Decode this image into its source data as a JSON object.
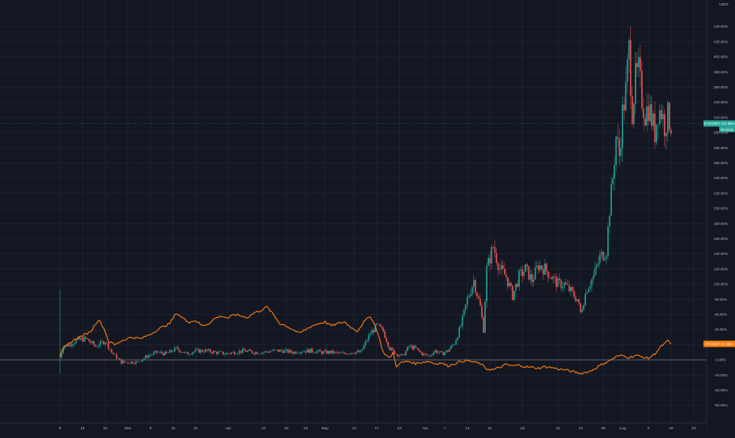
{
  "colors": {
    "background": "#131722",
    "grid": "#1e2230",
    "axis_text": "#b2b5be",
    "zero_line": "#787b86",
    "candle_up": "#26a69a",
    "candle_down": "#ef5350",
    "line_series": "#ff7f0e",
    "price_line": "#26a69a"
  },
  "ui": {
    "currency": "USDT"
  },
  "chart_data": {
    "type": "line",
    "y_unit": "%",
    "ylim": [
      -67,
      468
    ],
    "yticks": [
      -60,
      -40,
      -20,
      0,
      20,
      40,
      60,
      80,
      100,
      120,
      140,
      160,
      180,
      200,
      220,
      240,
      260,
      280,
      300,
      320,
      340,
      360,
      380,
      400,
      420,
      440
    ],
    "ytick_labels": [
      "-60.00%",
      "-40.00%",
      "-20.00%",
      "0.00%",
      "20.00%",
      "40.00%",
      "60.00%",
      "80.00%",
      "100.00%",
      "120.00%",
      "140.00%",
      "160.00%",
      "180.00%",
      "200.00%",
      "220.00%",
      "240.00%",
      "260.00%",
      "280.00%",
      "300.00%",
      "320.00%",
      "340.00%",
      "360.00%",
      "380.00%",
      "400.00%",
      "420.00%",
      "440.00%"
    ],
    "xticks": [
      {
        "label": "8",
        "day": 0
      },
      {
        "label": "15",
        "day": 7
      },
      {
        "label": "22",
        "day": 14
      },
      {
        "label": "Mar",
        "day": 21
      },
      {
        "label": "8",
        "day": 28
      },
      {
        "label": "15",
        "day": 35
      },
      {
        "label": "22",
        "day": 42
      },
      {
        "label": "Apr",
        "day": 52
      },
      {
        "label": "12",
        "day": 63
      },
      {
        "label": "19",
        "day": 70
      },
      {
        "label": "25",
        "day": 76
      },
      {
        "label": "May",
        "day": 82
      },
      {
        "label": "10",
        "day": 91
      },
      {
        "label": "17",
        "day": 98
      },
      {
        "label": "24",
        "day": 105
      },
      {
        "label": "Jun",
        "day": 113
      },
      {
        "label": "7",
        "day": 119
      },
      {
        "label": "14",
        "day": 126
      },
      {
        "label": "21",
        "day": 133
      },
      {
        "label": "Jul",
        "day": 143
      },
      {
        "label": "12",
        "day": 154
      },
      {
        "label": "19",
        "day": 161
      },
      {
        "label": "26",
        "day": 168
      },
      {
        "label": "Aug",
        "day": 174
      },
      {
        "label": "9",
        "day": 182
      },
      {
        "label": "16",
        "day": 189
      },
      {
        "label": "23",
        "day": 196
      }
    ],
    "series": [
      {
        "type": "candlestick",
        "label": "SYSUSDT",
        "last_value_label": "311.99%",
        "countdown_label": "03:15:01",
        "last_value": 311.99,
        "keypoints": [
          [
            0,
            3
          ],
          [
            1,
            18
          ],
          [
            3,
            20
          ],
          [
            5,
            26
          ],
          [
            8,
            28
          ],
          [
            11,
            18
          ],
          [
            14,
            25
          ],
          [
            16,
            10
          ],
          [
            19,
            -3
          ],
          [
            22,
            -3
          ],
          [
            24,
            -3
          ],
          [
            27,
            5
          ],
          [
            30,
            10
          ],
          [
            33,
            8
          ],
          [
            36,
            15
          ],
          [
            39,
            8
          ],
          [
            42,
            12
          ],
          [
            45,
            12
          ],
          [
            48,
            10
          ],
          [
            51,
            8
          ],
          [
            54,
            10
          ],
          [
            57,
            12
          ],
          [
            60,
            10
          ],
          [
            63,
            10
          ],
          [
            66,
            12
          ],
          [
            69,
            12
          ],
          [
            72,
            10
          ],
          [
            75,
            12
          ],
          [
            78,
            12
          ],
          [
            81,
            10
          ],
          [
            84,
            10
          ],
          [
            87,
            8
          ],
          [
            90,
            10
          ],
          [
            93,
            10
          ],
          [
            96,
            35
          ],
          [
            98,
            45
          ],
          [
            100,
            38
          ],
          [
            102,
            15
          ],
          [
            104,
            8
          ],
          [
            106,
            5
          ],
          [
            108,
            18
          ],
          [
            110,
            15
          ],
          [
            112,
            8
          ],
          [
            114,
            5
          ],
          [
            116,
            12
          ],
          [
            118,
            8
          ],
          [
            120,
            12
          ],
          [
            122,
            22
          ],
          [
            124,
            45
          ],
          [
            126,
            80
          ],
          [
            128,
            105
          ],
          [
            130,
            70
          ],
          [
            131,
            40
          ],
          [
            132,
            120
          ],
          [
            134,
            150
          ],
          [
            136,
            120
          ],
          [
            138,
            110
          ],
          [
            140,
            85
          ],
          [
            142,
            110
          ],
          [
            144,
            120
          ],
          [
            146,
            105
          ],
          [
            148,
            125
          ],
          [
            150,
            120
          ],
          [
            152,
            110
          ],
          [
            154,
            100
          ],
          [
            156,
            100
          ],
          [
            158,
            90
          ],
          [
            160,
            80
          ],
          [
            161,
            62
          ],
          [
            163,
            95
          ],
          [
            165,
            110
          ],
          [
            167,
            135
          ],
          [
            169,
            145
          ],
          [
            170,
            200
          ],
          [
            171,
            240
          ],
          [
            172,
            295
          ],
          [
            173,
            270
          ],
          [
            174,
            325
          ],
          [
            175,
            355
          ],
          [
            176,
            410
          ],
          [
            177,
            330
          ],
          [
            178,
            370
          ],
          [
            179,
            380
          ],
          [
            180,
            345
          ],
          [
            181,
            325
          ],
          [
            182,
            335
          ],
          [
            183,
            318
          ],
          [
            184,
            300
          ],
          [
            185,
            330
          ],
          [
            186,
            328
          ],
          [
            187,
            310
          ],
          [
            188,
            321
          ],
          [
            189,
            312
          ]
        ]
      },
      {
        "type": "line",
        "label": "RTUSDT",
        "last_value_label": "21.16%",
        "last_value": 21.16,
        "keypoints": [
          [
            0,
            5
          ],
          [
            1,
            15
          ],
          [
            3,
            22
          ],
          [
            5,
            28
          ],
          [
            7,
            32
          ],
          [
            9,
            36
          ],
          [
            10,
            40
          ],
          [
            11,
            48
          ],
          [
            12,
            53
          ],
          [
            13,
            46
          ],
          [
            14,
            38
          ],
          [
            15,
            25
          ],
          [
            17,
            20
          ],
          [
            19,
            25
          ],
          [
            22,
            30
          ],
          [
            25,
            28
          ],
          [
            28,
            34
          ],
          [
            31,
            42
          ],
          [
            34,
            48
          ],
          [
            36,
            62
          ],
          [
            38,
            55
          ],
          [
            40,
            50
          ],
          [
            42,
            52
          ],
          [
            44,
            45
          ],
          [
            46,
            48
          ],
          [
            48,
            55
          ],
          [
            50,
            58
          ],
          [
            52,
            55
          ],
          [
            54,
            60
          ],
          [
            56,
            58
          ],
          [
            58,
            56
          ],
          [
            60,
            62
          ],
          [
            62,
            65
          ],
          [
            64,
            70
          ],
          [
            66,
            60
          ],
          [
            68,
            48
          ],
          [
            70,
            45
          ],
          [
            72,
            40
          ],
          [
            74,
            35
          ],
          [
            76,
            40
          ],
          [
            78,
            45
          ],
          [
            80,
            48
          ],
          [
            82,
            50
          ],
          [
            84,
            45
          ],
          [
            86,
            48
          ],
          [
            88,
            50
          ],
          [
            90,
            43
          ],
          [
            92,
            38
          ],
          [
            94,
            50
          ],
          [
            96,
            58
          ],
          [
            98,
            40
          ],
          [
            100,
            10
          ],
          [
            102,
            2
          ],
          [
            103,
            10
          ],
          [
            104,
            -8
          ],
          [
            106,
            -3
          ],
          [
            108,
            -2
          ],
          [
            110,
            -5
          ],
          [
            112,
            -3
          ],
          [
            114,
            -2
          ],
          [
            116,
            -5
          ],
          [
            118,
            -4
          ],
          [
            120,
            -8
          ],
          [
            122,
            -5
          ],
          [
            124,
            -2
          ],
          [
            126,
            -1
          ],
          [
            128,
            -3
          ],
          [
            130,
            -5
          ],
          [
            132,
            -12
          ],
          [
            134,
            -13
          ],
          [
            136,
            -10
          ],
          [
            138,
            -6
          ],
          [
            140,
            -8
          ],
          [
            142,
            -7
          ],
          [
            144,
            -9
          ],
          [
            146,
            -10
          ],
          [
            148,
            -11
          ],
          [
            150,
            -9
          ],
          [
            152,
            -10
          ],
          [
            154,
            -12
          ],
          [
            156,
            -13
          ],
          [
            158,
            -15
          ],
          [
            160,
            -17
          ],
          [
            161,
            -18
          ],
          [
            162,
            -17
          ],
          [
            164,
            -15
          ],
          [
            166,
            -10
          ],
          [
            168,
            -5
          ],
          [
            170,
            -1
          ],
          [
            172,
            4
          ],
          [
            174,
            6
          ],
          [
            176,
            3
          ],
          [
            178,
            6
          ],
          [
            180,
            4
          ],
          [
            182,
            2
          ],
          [
            184,
            8
          ],
          [
            186,
            18
          ],
          [
            188,
            25
          ],
          [
            189,
            21
          ]
        ]
      }
    ]
  }
}
